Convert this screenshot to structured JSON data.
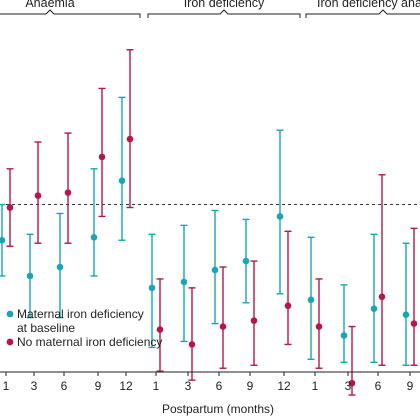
{
  "chart_data": {
    "type": "scatter",
    "xlabel": "Postpartum (months)",
    "groups": [
      {
        "label": "Anaemia",
        "x": [
          "1",
          "3",
          "6",
          "9",
          "12"
        ]
      },
      {
        "label": "Iron deficiency",
        "x": [
          "1",
          "3",
          "6",
          "9",
          "12"
        ]
      },
      {
        "label": "Iron deficiency anaemia",
        "x": [
          "1",
          "3",
          "6",
          "9"
        ]
      }
    ],
    "series": [
      {
        "name": "Maternal iron deficiency at baseline",
        "name_lines": [
          "Maternal iron deficiency",
          "at baseline"
        ],
        "color": "#1aa5b5",
        "points": [
          {
            "group": 0,
            "x": "1",
            "y": 0.88,
            "lo": 0.76,
            "hi": 1.0
          },
          {
            "group": 0,
            "x": "3",
            "y": 0.76,
            "lo": 0.62,
            "hi": 0.9
          },
          {
            "group": 0,
            "x": "6",
            "y": 0.79,
            "lo": 0.62,
            "hi": 0.97
          },
          {
            "group": 0,
            "x": "9",
            "y": 0.89,
            "lo": 0.76,
            "hi": 1.12
          },
          {
            "group": 0,
            "x": "12",
            "y": 1.08,
            "lo": 0.88,
            "hi": 1.36
          },
          {
            "group": 1,
            "x": "1",
            "y": 0.72,
            "lo": 0.52,
            "hi": 0.9
          },
          {
            "group": 1,
            "x": "3",
            "y": 0.74,
            "lo": 0.54,
            "hi": 0.93
          },
          {
            "group": 1,
            "x": "6",
            "y": 0.78,
            "lo": 0.6,
            "hi": 0.98
          },
          {
            "group": 1,
            "x": "9",
            "y": 0.81,
            "lo": 0.67,
            "hi": 0.95
          },
          {
            "group": 1,
            "x": "12",
            "y": 0.96,
            "lo": 0.7,
            "hi": 1.25
          },
          {
            "group": 2,
            "x": "1",
            "y": 0.68,
            "lo": 0.48,
            "hi": 0.89
          },
          {
            "group": 2,
            "x": "3",
            "y": 0.56,
            "lo": 0.47,
            "hi": 0.73
          },
          {
            "group": 2,
            "x": "6",
            "y": 0.65,
            "lo": 0.47,
            "hi": 0.9
          },
          {
            "group": 2,
            "x": "9",
            "y": 0.63,
            "lo": 0.46,
            "hi": 0.87
          }
        ]
      },
      {
        "name": "No maternal iron deficiency",
        "name_lines": [
          "No maternal iron deficiency"
        ],
        "color": "#b5164e",
        "points": [
          {
            "group": 0,
            "x": "1",
            "y": 0.99,
            "lo": 0.86,
            "hi": 1.12
          },
          {
            "group": 0,
            "x": "3",
            "y": 1.03,
            "lo": 0.87,
            "hi": 1.21
          },
          {
            "group": 0,
            "x": "6",
            "y": 1.04,
            "lo": 0.87,
            "hi": 1.24
          },
          {
            "group": 0,
            "x": "9",
            "y": 1.16,
            "lo": 0.96,
            "hi": 1.39
          },
          {
            "group": 0,
            "x": "12",
            "y": 1.22,
            "lo": 0.99,
            "hi": 1.52
          },
          {
            "group": 1,
            "x": "1",
            "y": 0.58,
            "lo": 0.44,
            "hi": 0.75
          },
          {
            "group": 1,
            "x": "3",
            "y": 0.53,
            "lo": 0.41,
            "hi": 0.72
          },
          {
            "group": 1,
            "x": "6",
            "y": 0.59,
            "lo": 0.45,
            "hi": 0.79
          },
          {
            "group": 1,
            "x": "9",
            "y": 0.61,
            "lo": 0.46,
            "hi": 0.81
          },
          {
            "group": 1,
            "x": "12",
            "y": 0.66,
            "lo": 0.53,
            "hi": 0.91
          },
          {
            "group": 2,
            "x": "1",
            "y": 0.59,
            "lo": 0.45,
            "hi": 0.75
          },
          {
            "group": 2,
            "x": "3",
            "y": 0.4,
            "lo": 0.36,
            "hi": 0.59
          },
          {
            "group": 2,
            "x": "6",
            "y": 0.69,
            "lo": 0.46,
            "hi": 1.1
          },
          {
            "group": 2,
            "x": "9",
            "y": 0.6,
            "lo": 0.46,
            "hi": 0.92
          }
        ]
      }
    ],
    "reference_line": {
      "y": 1.0,
      "style": "dashed"
    },
    "ylim": [
      0.35,
      1.62
    ],
    "grid": false,
    "legend": "bottom-left"
  }
}
